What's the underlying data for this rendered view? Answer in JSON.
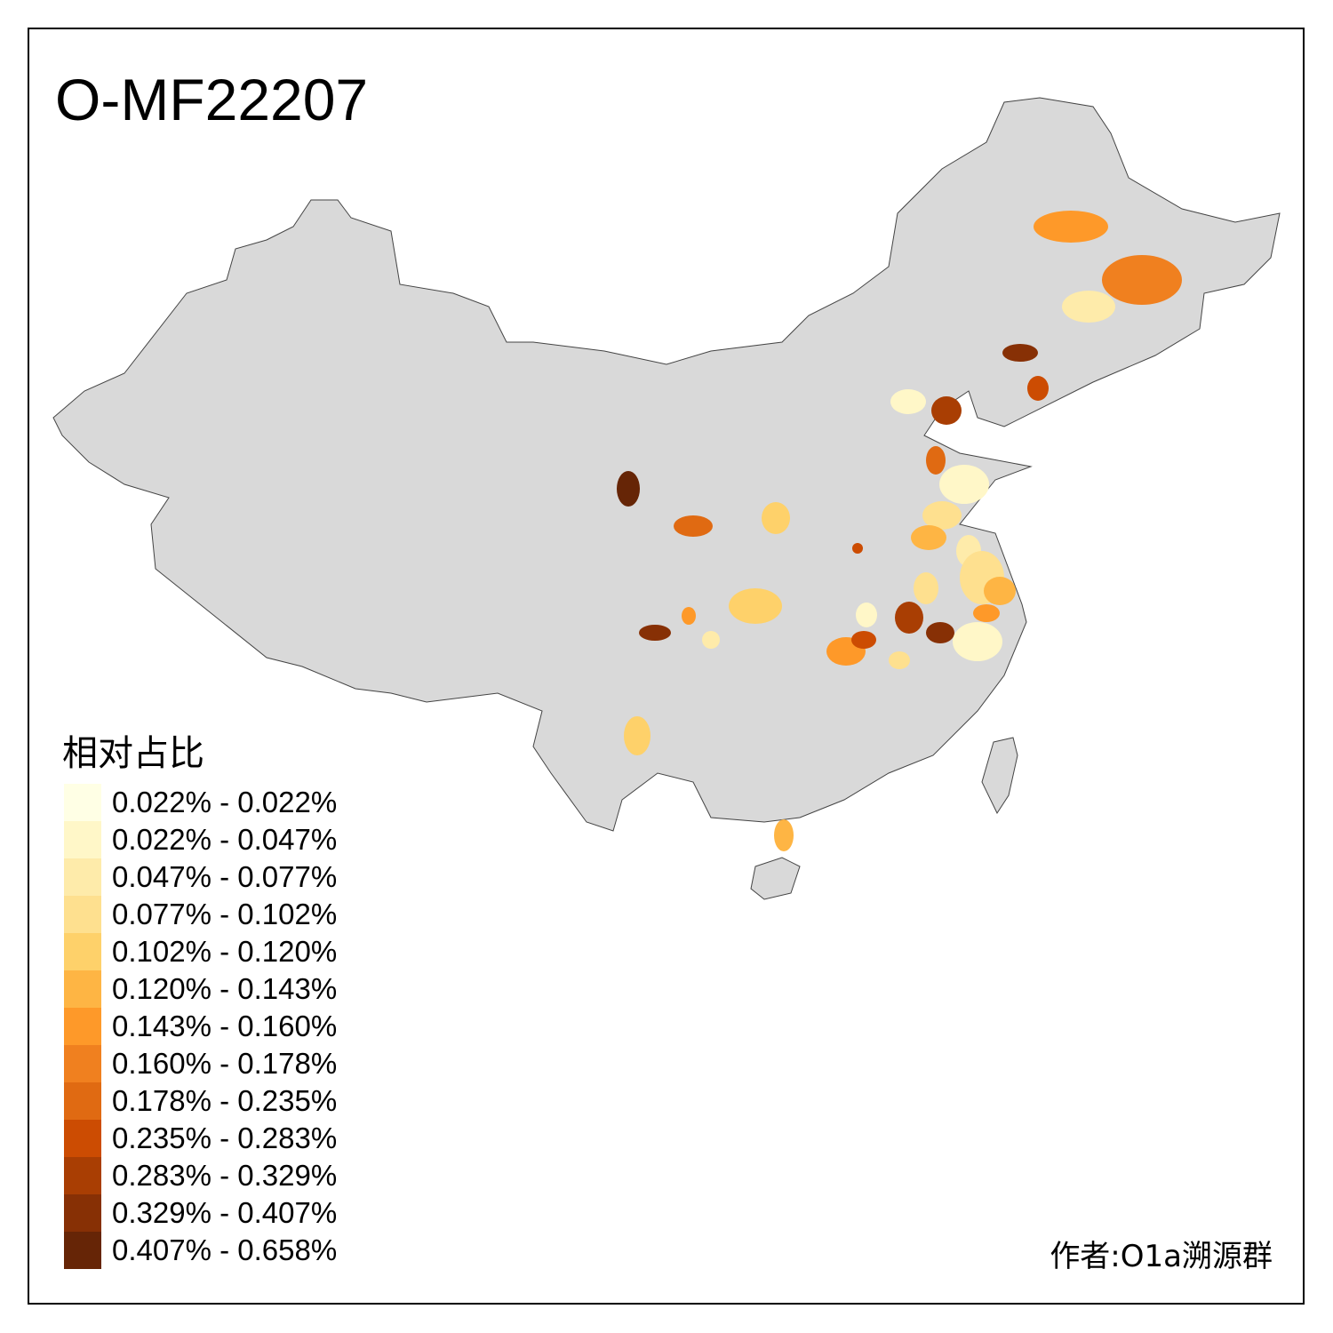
{
  "title": "O-MF22207",
  "legend": {
    "title": "相对占比",
    "items": [
      {
        "label": "0.022% - 0.022%",
        "color": "#FFFFE5"
      },
      {
        "label": "0.022% - 0.047%",
        "color": "#FFF7C8"
      },
      {
        "label": "0.047% - 0.077%",
        "color": "#FEEBAA"
      },
      {
        "label": "0.077% - 0.102%",
        "color": "#FEE08F"
      },
      {
        "label": "0.102% - 0.120%",
        "color": "#FED16A"
      },
      {
        "label": "0.120% - 0.143%",
        "color": "#FEB544"
      },
      {
        "label": "0.143% - 0.160%",
        "color": "#FE9929"
      },
      {
        "label": "0.160% - 0.178%",
        "color": "#F0801F"
      },
      {
        "label": "0.178% - 0.235%",
        "color": "#E06A12"
      },
      {
        "label": "0.235% - 0.283%",
        "color": "#CC4C02"
      },
      {
        "label": "0.283% - 0.329%",
        "color": "#A93E03"
      },
      {
        "label": "0.329% - 0.407%",
        "color": "#873005"
      },
      {
        "label": "0.407% - 0.658%",
        "color": "#662506"
      }
    ]
  },
  "base_color": "#D9D9D9",
  "author": "作者:O1a溯源群"
}
